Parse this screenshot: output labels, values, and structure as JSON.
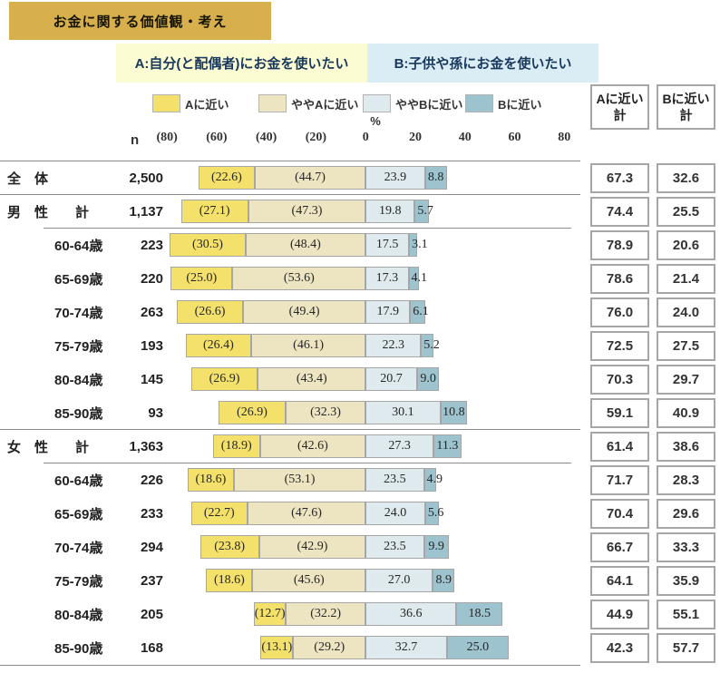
{
  "title": "お金に関する価値観・考え",
  "headers": {
    "a": "A:自分(と配偶者)にお金を使いたい",
    "b": "B:子供や孫にお金を使いたい"
  },
  "legend": {
    "items": [
      "Aに近い",
      "ややAに近い",
      "ややBに近い",
      "Bに近い"
    ]
  },
  "axis": {
    "percent_label": "%",
    "n_label": "n",
    "ticks": [
      "(80)",
      "(60)",
      "(40)",
      "(20)",
      "0",
      "20",
      "40",
      "60",
      "80"
    ]
  },
  "totals": {
    "a_header": [
      "Aに近い",
      "計"
    ],
    "b_header": [
      "Bに近い",
      "計"
    ]
  },
  "colors": {
    "banner_bg": "#D8AF4D",
    "header_a_bg": "#FCFCD2",
    "header_b_bg": "#DBEDF4",
    "header_text": "#17375D",
    "seg_a_close": "#F4E16C",
    "seg_a_lean": "#EDE4C2",
    "seg_b_lean": "#DEEAED",
    "seg_b_close": "#9CC3CE",
    "seg_border": "#A6A6A6",
    "line": "#8C8C8C",
    "cell_border": "#A6A6A6"
  },
  "chart_data": {
    "type": "bar",
    "subtype": "diverging-stacked-horizontal",
    "title": "お金に関する価値観・考え",
    "unit": "%",
    "axis_range": [
      -80,
      80
    ],
    "series": [
      "Aに近い",
      "ややAに近い",
      "ややBに近い",
      "Bに近い"
    ],
    "note": "A側(左)の値は括弧付き表示、B側(右)は括弧なし表示",
    "rows": [
      {
        "label": "全　体",
        "n": "2,500",
        "values": [
          22.6,
          44.7,
          23.9,
          8.8
        ],
        "a_total": "67.3",
        "b_total": "32.6",
        "indent": false,
        "sep_above": "full"
      },
      {
        "label": "男　性　　計",
        "n": "1,137",
        "values": [
          27.1,
          47.3,
          19.8,
          5.7
        ],
        "a_total": "74.4",
        "b_total": "25.5",
        "indent": false,
        "sep_above": "full"
      },
      {
        "label": "60-64歳",
        "n": "223",
        "values": [
          30.5,
          48.4,
          17.5,
          3.1
        ],
        "a_total": "78.9",
        "b_total": "20.6",
        "indent": true,
        "sep_above": "partial"
      },
      {
        "label": "65-69歳",
        "n": "220",
        "values": [
          25.0,
          53.6,
          17.3,
          4.1
        ],
        "a_total": "78.6",
        "b_total": "21.4",
        "indent": true,
        "sep_above": null
      },
      {
        "label": "70-74歳",
        "n": "263",
        "values": [
          26.6,
          49.4,
          17.9,
          6.1
        ],
        "a_total": "76.0",
        "b_total": "24.0",
        "indent": true,
        "sep_above": null
      },
      {
        "label": "75-79歳",
        "n": "193",
        "values": [
          26.4,
          46.1,
          22.3,
          5.2
        ],
        "a_total": "72.5",
        "b_total": "27.5",
        "indent": true,
        "sep_above": null
      },
      {
        "label": "80-84歳",
        "n": "145",
        "values": [
          26.9,
          43.4,
          20.7,
          9.0
        ],
        "a_total": "70.3",
        "b_total": "29.7",
        "indent": true,
        "sep_above": null
      },
      {
        "label": "85-90歳",
        "n": "93",
        "values": [
          26.9,
          32.3,
          30.1,
          10.8
        ],
        "a_total": "59.1",
        "b_total": "40.9",
        "indent": true,
        "sep_above": null
      },
      {
        "label": "女　性　　計",
        "n": "1,363",
        "values": [
          18.9,
          42.6,
          27.3,
          11.3
        ],
        "a_total": "61.4",
        "b_total": "38.6",
        "indent": false,
        "sep_above": "full"
      },
      {
        "label": "60-64歳",
        "n": "226",
        "values": [
          18.6,
          53.1,
          23.5,
          4.9
        ],
        "a_total": "71.7",
        "b_total": "28.3",
        "indent": true,
        "sep_above": "partial"
      },
      {
        "label": "65-69歳",
        "n": "233",
        "values": [
          22.7,
          47.6,
          24.0,
          5.6
        ],
        "a_total": "70.4",
        "b_total": "29.6",
        "indent": true,
        "sep_above": null
      },
      {
        "label": "70-74歳",
        "n": "294",
        "values": [
          23.8,
          42.9,
          23.5,
          9.9
        ],
        "a_total": "66.7",
        "b_total": "33.3",
        "indent": true,
        "sep_above": null
      },
      {
        "label": "75-79歳",
        "n": "237",
        "values": [
          18.6,
          45.6,
          27.0,
          8.9
        ],
        "a_total": "64.1",
        "b_total": "35.9",
        "indent": true,
        "sep_above": null
      },
      {
        "label": "80-84歳",
        "n": "205",
        "values": [
          12.7,
          32.2,
          36.6,
          18.5
        ],
        "a_total": "44.9",
        "b_total": "55.1",
        "indent": true,
        "sep_above": null
      },
      {
        "label": "85-90歳",
        "n": "168",
        "values": [
          13.1,
          29.2,
          32.7,
          25.0
        ],
        "a_total": "42.3",
        "b_total": "57.7",
        "indent": true,
        "sep_above": null
      }
    ]
  }
}
